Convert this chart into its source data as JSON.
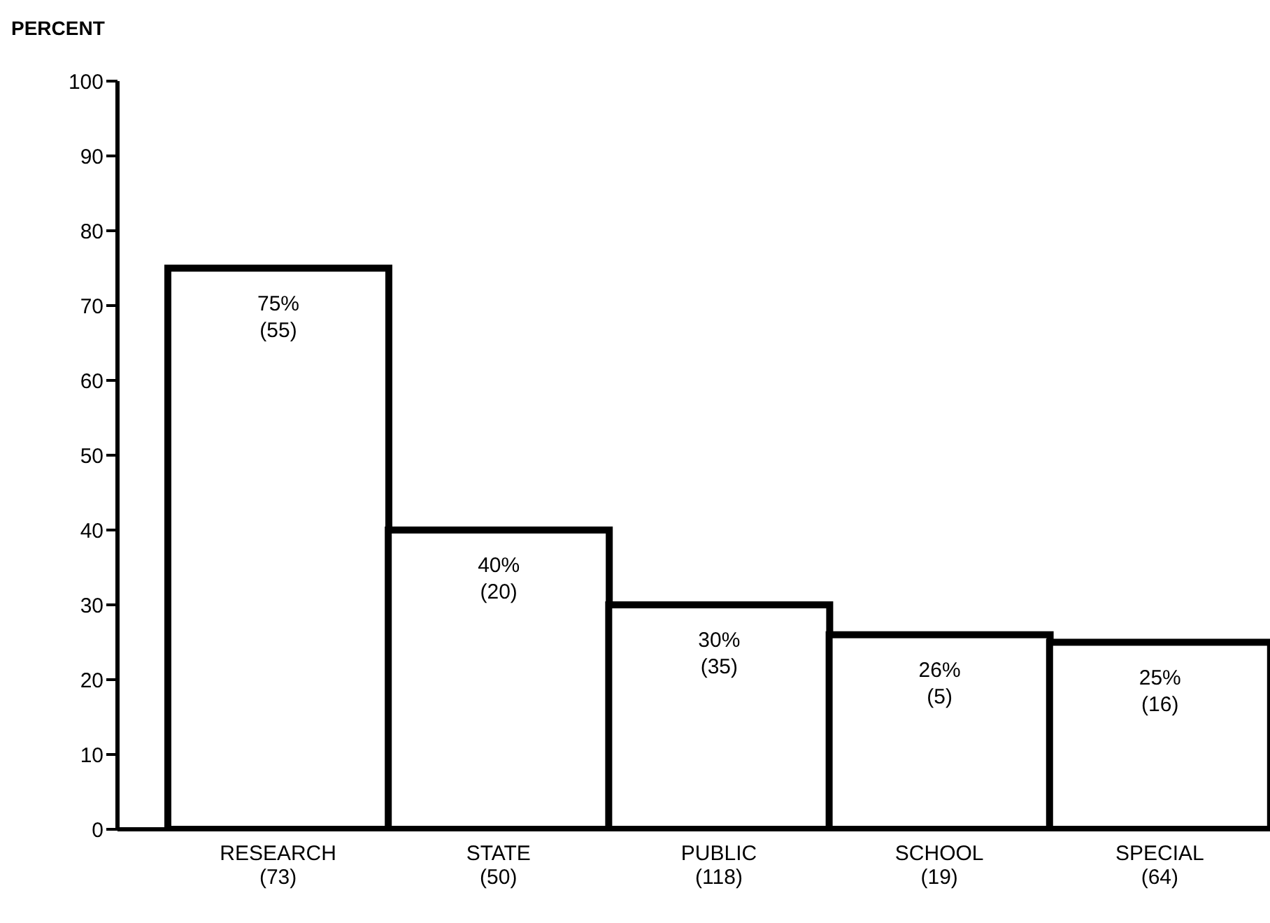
{
  "chart_data": {
    "type": "bar",
    "ylabel": "PERCENT",
    "categories": [
      "RESEARCH\n(73)",
      "STATE\n(50)",
      "PUBLIC\n(118)",
      "SCHOOL\n(19)",
      "SPECIAL\n(64)"
    ],
    "values": [
      75,
      40,
      30,
      26,
      25
    ],
    "value_labels": [
      "75%\n(55)",
      "40%\n(20)",
      "30%\n(35)",
      "26%\n(5)",
      "25%\n(16)"
    ],
    "color": "#ffffff",
    "ylim": [
      0,
      100
    ],
    "yticks": [
      0,
      10,
      20,
      30,
      40,
      50,
      60,
      70,
      80,
      90,
      100
    ],
    "grid": false,
    "legend": false
  }
}
